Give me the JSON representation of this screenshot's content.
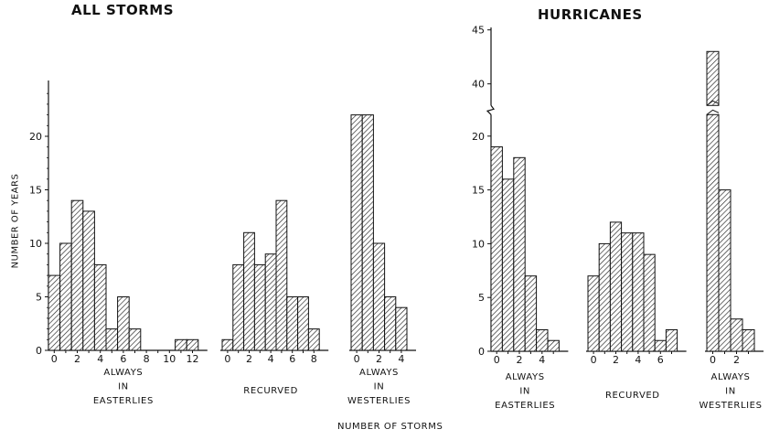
{
  "panels": [
    {
      "title": "ALL STORMS",
      "ylabel": "NUMBER OF YEARS"
    },
    {
      "title": "HURRICANES"
    }
  ],
  "xlabel": "NUMBER OF STORMS",
  "chart_data": [
    {
      "type": "bar",
      "title": "ALL STORMS",
      "ylabel": "NUMBER OF YEARS",
      "xlabel": "NUMBER OF STORMS",
      "ylim": [
        0,
        25
      ],
      "yticks": [
        0,
        5,
        10,
        15,
        20
      ],
      "groups": [
        {
          "name": "ALWAYS IN EASTERLIES",
          "label_lines": [
            "ALWAYS",
            "IN",
            "EASTERLIES"
          ],
          "x": [
            0,
            1,
            2,
            3,
            4,
            5,
            6,
            7,
            8,
            9,
            10,
            11,
            12
          ],
          "values": [
            7,
            10,
            14,
            13,
            8,
            2,
            5,
            2,
            0,
            0,
            0,
            1,
            1
          ],
          "xtick_labels": [
            "0",
            "2",
            "4",
            "6",
            "8",
            "10",
            "12"
          ]
        },
        {
          "name": "RECURVED",
          "label_lines": [
            "RECURVED"
          ],
          "x": [
            0,
            1,
            2,
            3,
            4,
            5,
            6,
            7,
            8
          ],
          "values": [
            1,
            8,
            11,
            8,
            9,
            14,
            5,
            5,
            2
          ],
          "xtick_labels": [
            "0",
            "2",
            "4",
            "6",
            "8"
          ]
        },
        {
          "name": "ALWAYS IN WESTERLIES",
          "label_lines": [
            "ALWAYS",
            "IN",
            "WESTERLIES"
          ],
          "x": [
            0,
            1,
            2,
            3,
            4
          ],
          "values": [
            22,
            22,
            10,
            5,
            4
          ],
          "xtick_labels": [
            "0",
            "2",
            "4"
          ]
        }
      ]
    },
    {
      "type": "bar",
      "title": "HURRICANES",
      "xlabel": "NUMBER OF STORMS",
      "ylim": [
        0,
        45
      ],
      "yticks": [
        0,
        5,
        10,
        15,
        20,
        40,
        45
      ],
      "axis_break": [
        22,
        38
      ],
      "groups": [
        {
          "name": "ALWAYS IN EASTERLIES",
          "label_lines": [
            "ALWAYS",
            "IN",
            "EASTERLIES"
          ],
          "x": [
            0,
            1,
            2,
            3,
            4,
            5
          ],
          "values": [
            19,
            16,
            18,
            7,
            2,
            1
          ],
          "xtick_labels": [
            "0",
            "2",
            "4"
          ]
        },
        {
          "name": "RECURVED",
          "label_lines": [
            "RECURVED"
          ],
          "x": [
            0,
            1,
            2,
            3,
            4,
            5,
            6,
            7
          ],
          "values": [
            7,
            10,
            12,
            11,
            11,
            9,
            1,
            2
          ],
          "xtick_labels": [
            "0",
            "2",
            "4",
            "6"
          ]
        },
        {
          "name": "ALWAYS IN WESTERLIES",
          "label_lines": [
            "ALWAYS",
            "IN",
            "WESTERLIES"
          ],
          "x": [
            0,
            1,
            2,
            3
          ],
          "values": [
            43,
            15,
            3,
            2
          ],
          "xtick_labels": [
            "0",
            "2"
          ]
        }
      ]
    }
  ]
}
